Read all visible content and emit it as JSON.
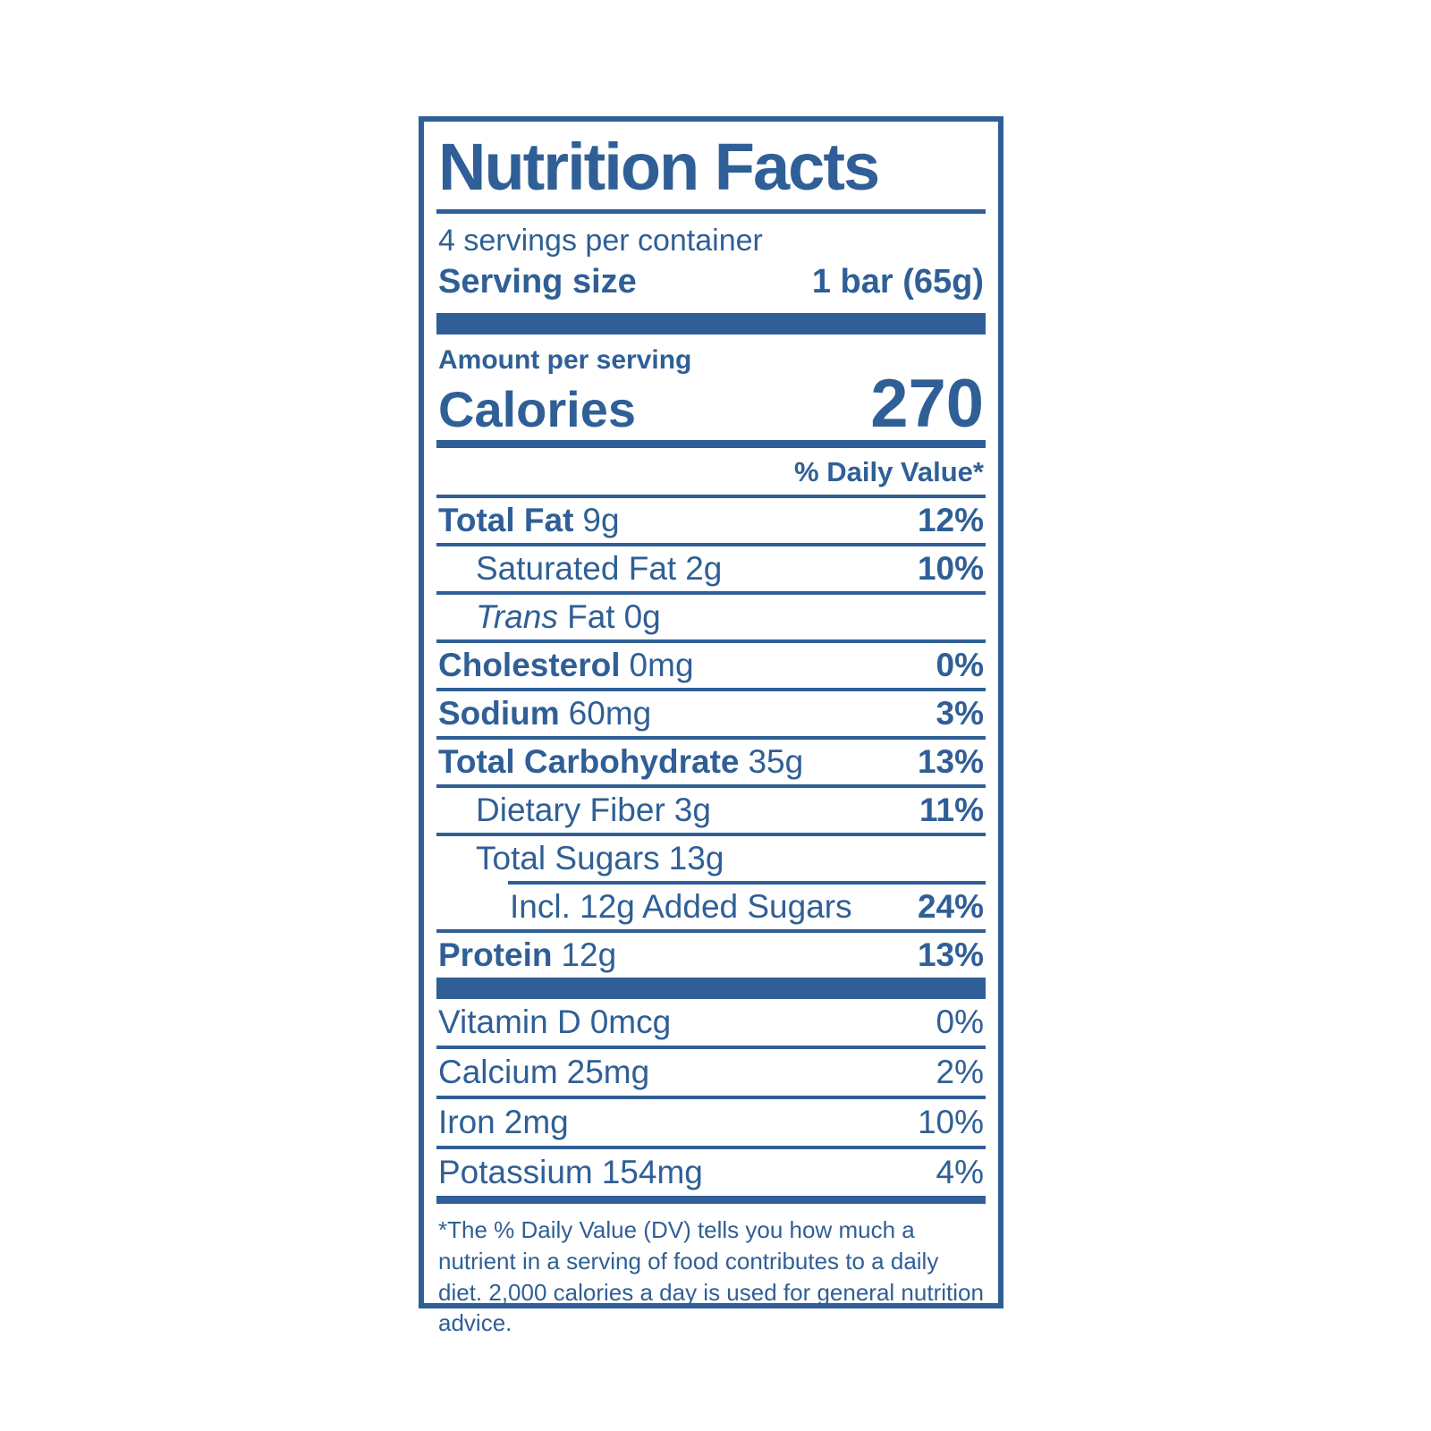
{
  "page": {
    "background": "#ffffff"
  },
  "label": {
    "accent_color": "#2f5f96",
    "title": "Nutrition Facts",
    "servings_per_container": "4 servings per container",
    "serving_size": {
      "label": "Serving size",
      "value": "1 bar (65g)"
    },
    "amount_per_serving": "Amount per serving",
    "calories": {
      "label": "Calories",
      "value": "270"
    },
    "daily_value_header": "% Daily Value*",
    "nutrient_rows": [
      {
        "name": "Total Fat",
        "amount": "9g",
        "dv": "12%",
        "bold": true,
        "indent": 0,
        "rule_above": "full"
      },
      {
        "name": "Saturated Fat",
        "amount": "2g",
        "dv": "10%",
        "bold": false,
        "indent": 1,
        "rule_above": "full"
      },
      {
        "name": "Fat",
        "italic_prefix": "Trans",
        "amount": "0g",
        "dv": "",
        "bold": false,
        "indent": 1,
        "rule_above": "full"
      },
      {
        "name": "Cholesterol",
        "amount": "0mg",
        "dv": "0%",
        "bold": true,
        "indent": 0,
        "rule_above": "full"
      },
      {
        "name": "Sodium",
        "amount": "60mg",
        "dv": "3%",
        "bold": true,
        "indent": 0,
        "rule_above": "full"
      },
      {
        "name": "Total Carbohydrate",
        "amount": "35g",
        "dv": "13%",
        "bold": true,
        "indent": 0,
        "rule_above": "full"
      },
      {
        "name": "Dietary Fiber",
        "amount": "3g",
        "dv": "11%",
        "bold": false,
        "indent": 1,
        "rule_above": "full"
      },
      {
        "name": "Total Sugars",
        "amount": "13g",
        "dv": "",
        "bold": false,
        "indent": 1,
        "rule_above": "full"
      },
      {
        "name": "Incl. 12g Added Sugars",
        "amount": "",
        "dv": "24%",
        "bold": false,
        "indent": 2,
        "rule_above": "short"
      },
      {
        "name": "Protein",
        "amount": "12g",
        "dv": "13%",
        "bold": true,
        "indent": 0,
        "rule_above": "full"
      }
    ],
    "micronutrient_rows": [
      {
        "name": "Vitamin D",
        "amount": "0mcg",
        "dv": "0%",
        "rule_above": "none"
      },
      {
        "name": "Calcium",
        "amount": "25mg",
        "dv": "2%",
        "rule_above": "full"
      },
      {
        "name": "Iron",
        "amount": "2mg",
        "dv": "10%",
        "rule_above": "full"
      },
      {
        "name": "Potassium",
        "amount": "154mg",
        "dv": "4%",
        "rule_above": "full"
      }
    ],
    "footnote": "*The % Daily Value (DV) tells you how much a nutrient in a serving of food contributes to a daily diet. 2,000 calories a day is used for general nutrition advice."
  }
}
